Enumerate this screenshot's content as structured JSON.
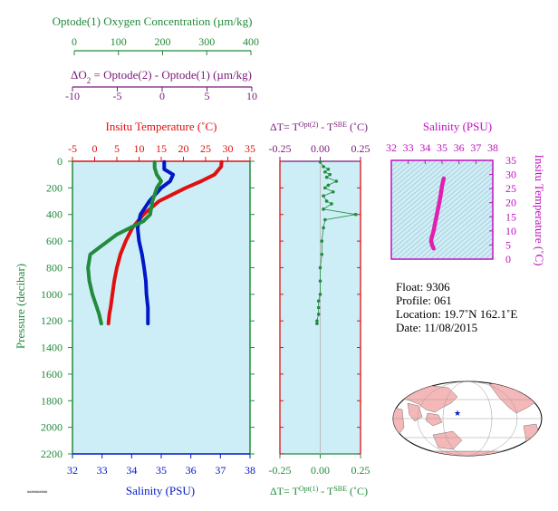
{
  "colors": {
    "oxygen": "#228b3c",
    "delta_o2": "#7a1a7a",
    "temperature": "#e01010",
    "salinity": "#0018c8",
    "panel_bg": "#cdeef7",
    "magenta": "#e020b0",
    "axis_purple": "#c010c0"
  },
  "main_panel": {
    "oxygen_title": "Optode(1) Oxygen Concentration (µm/kg)",
    "oxygen_ticks": [
      "0",
      "100",
      "200",
      "300",
      "400"
    ],
    "delta_title_part1": "ΔO",
    "delta_title_sub": "2",
    "delta_title_part2": " = Optode(2) - Optode(1)   (µm/kg)",
    "delta_ticks": [
      "-10",
      "-5",
      "0",
      "5",
      "10"
    ],
    "temp_title": "Insitu Temperature (˚C)",
    "temp_ticks": [
      "-5",
      "0",
      "5",
      "10",
      "15",
      "20",
      "25",
      "30",
      "35"
    ],
    "salinity_title": "Salinity (PSU)",
    "salinity_ticks": [
      "32",
      "33",
      "34",
      "35",
      "36",
      "37",
      "38"
    ],
    "pressure_title": "Pressure (decibar)",
    "pressure_ticks": [
      "0",
      "200",
      "400",
      "600",
      "800",
      "1000",
      "1200",
      "1400",
      "1600",
      "1800",
      "2000",
      "2200"
    ]
  },
  "dt_panel": {
    "top_title": "ΔT= T^Opt(2) - T^SBE (˚C)",
    "top_title_a": "ΔT= T",
    "top_title_sup1": "Opt(2)",
    "top_title_b": " - T",
    "top_title_sup2": "SBE",
    "top_title_c": " (˚C)",
    "bottom_title_a": "ΔT= T",
    "bottom_title_sup1": "Opt(1)",
    "bottom_title_b": " - T",
    "bottom_title_sup2": "SBE",
    "bottom_title_c": " (˚C)",
    "ticks": [
      "-0.25",
      "0.00",
      "0.25"
    ]
  },
  "ts_panel": {
    "title": "Salinity (PSU)",
    "x_ticks": [
      "32",
      "33",
      "34",
      "35",
      "36",
      "37",
      "38"
    ],
    "y_title": "Insitu Temperature (˚C)",
    "y_ticks": [
      "0",
      "5",
      "10",
      "15",
      "20",
      "25",
      "30",
      "35"
    ]
  },
  "float_info": {
    "float": "Float:  9306",
    "profile": "Profile:  061",
    "location": "Location:  19.7˚N  162.1˚E",
    "date": "Date:  11/08/2015"
  },
  "footnote": "##########",
  "chart_data": [
    {
      "type": "line",
      "title": "",
      "ylabel": "Pressure (decibar)",
      "ylim": [
        2200,
        0
      ],
      "series": [
        {
          "name": "Insitu Temperature (˚C)",
          "xlim": [
            -5,
            35
          ],
          "x": [
            28.6,
            28.5,
            27.0,
            24.0,
            20.5,
            17.5,
            14.5,
            11.0,
            8.5,
            7.0,
            5.8,
            5.0,
            4.4,
            4.0,
            3.6,
            3.3,
            3.1
          ],
          "pressure": [
            5,
            40,
            100,
            150,
            200,
            250,
            300,
            400,
            500,
            600,
            700,
            800,
            900,
            1000,
            1100,
            1150,
            1220
          ]
        },
        {
          "name": "Salinity (PSU)",
          "xlim": [
            32,
            38
          ],
          "x": [
            35.1,
            35.1,
            35.4,
            35.3,
            35.0,
            34.8,
            34.6,
            34.3,
            34.2,
            34.25,
            34.35,
            34.42,
            34.48,
            34.5,
            34.55,
            34.55
          ],
          "pressure": [
            5,
            60,
            100,
            150,
            200,
            250,
            300,
            400,
            500,
            600,
            700,
            800,
            900,
            1000,
            1100,
            1220
          ]
        },
        {
          "name": "Optode(1) Oxygen Concentration (µm/kg)",
          "xlim": [
            0,
            400
          ],
          "x": [
            185,
            185,
            190,
            200,
            190,
            185,
            180,
            175,
            160,
            100,
            60,
            40,
            35,
            38,
            45,
            55,
            60,
            65
          ],
          "pressure": [
            5,
            50,
            100,
            150,
            200,
            250,
            300,
            400,
            450,
            550,
            650,
            700,
            800,
            900,
            1000,
            1100,
            1150,
            1220
          ]
        }
      ]
    },
    {
      "type": "scatter",
      "title": "",
      "xlabel": "ΔT= T^Opt(1) - T^SBE (˚C)",
      "xlim": [
        -0.25,
        0.25
      ],
      "ylim": [
        2200,
        0
      ],
      "x": [
        0.0,
        0.02,
        0.05,
        0.03,
        0.06,
        0.04,
        0.1,
        0.05,
        0.03,
        0.08,
        0.02,
        0.04,
        0.07,
        0.02,
        0.22,
        0.03,
        0.02,
        0.01,
        0.01,
        0.0,
        0.0,
        0.0,
        -0.01,
        -0.01,
        -0.01,
        -0.02,
        -0.02
      ],
      "pressure": [
        5,
        40,
        60,
        80,
        100,
        120,
        150,
        180,
        200,
        230,
        260,
        300,
        320,
        360,
        400,
        440,
        500,
        600,
        700,
        800,
        900,
        1000,
        1050,
        1100,
        1150,
        1200,
        1220
      ]
    },
    {
      "type": "line",
      "title": "",
      "xlabel": "Salinity (PSU)",
      "ylabel": "Insitu Temperature (˚C)",
      "xlim": [
        32,
        38
      ],
      "ylim": [
        0,
        35
      ],
      "x": [
        35.1,
        35.0,
        34.9,
        34.8,
        34.7,
        34.6,
        34.5,
        34.4,
        34.35,
        34.4,
        34.45,
        34.5
      ],
      "y": [
        28.6,
        26,
        22,
        19,
        16,
        13,
        10,
        8,
        6.5,
        5.2,
        4.4,
        3.8
      ]
    }
  ]
}
